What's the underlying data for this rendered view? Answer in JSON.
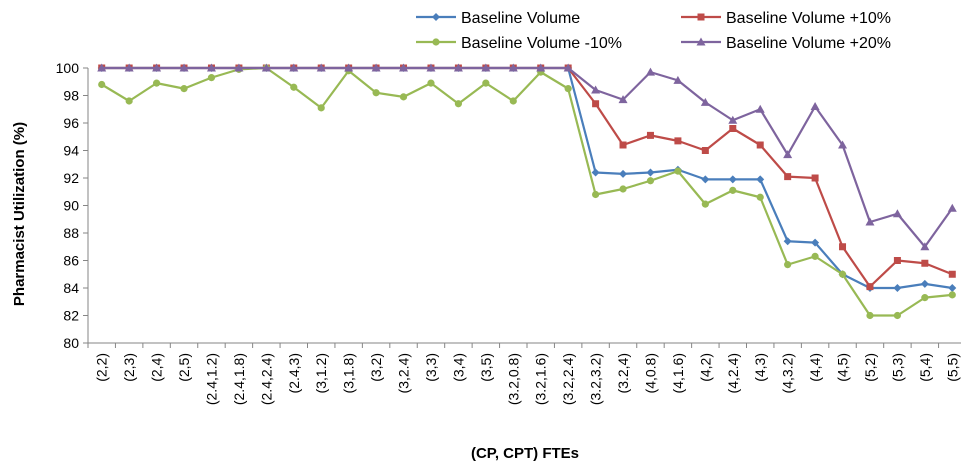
{
  "chart_data": {
    "type": "line",
    "xlabel": "(CP, CPT) FTEs",
    "ylabel": "Pharmacist Utilization (%)",
    "ylim": [
      80,
      100
    ],
    "yticks": [
      80,
      82,
      84,
      86,
      88,
      90,
      92,
      94,
      96,
      98,
      100
    ],
    "grid": false,
    "legend_position": "top-right",
    "categories": [
      "(2,2)",
      "(2,3)",
      "(2,4)",
      "(2,5)",
      "(2.4,1.2)",
      "(2.4,1.8)",
      "(2.4,2.4)",
      "(2.4,3)",
      "(3,1.2)",
      "(3,1.8)",
      "(3,2)",
      "(3,2.4)",
      "(3,3)",
      "(3,4)",
      "(3,5)",
      "(3.2,0.8)",
      "(3.2,1.6)",
      "(3.2,2.4)",
      "(3.2,3.2)",
      "(3.2,4)",
      "(4,0.8)",
      "(4,1.6)",
      "(4,2)",
      "(4,2.4)",
      "(4,3)",
      "(4,3.2)",
      "(4,4)",
      "(4,5)",
      "(5,2)",
      "(5,3)",
      "(5,4)",
      "(5,5)"
    ],
    "series": [
      {
        "name": "Baseline Volume",
        "color": "#4A7EBB",
        "marker": "diamond",
        "values": [
          100,
          100,
          100,
          100,
          100,
          100,
          100,
          100,
          100,
          100,
          100,
          100,
          100,
          100,
          100,
          100,
          100,
          100,
          92.4,
          92.3,
          92.4,
          92.6,
          91.9,
          91.9,
          91.9,
          87.4,
          87.3,
          85.0,
          84.0,
          84.0,
          84.3,
          84.0
        ]
      },
      {
        "name": "Baseline Volume +10%",
        "color": "#BE4B48",
        "marker": "square",
        "values": [
          100,
          100,
          100,
          100,
          100,
          100,
          100,
          100,
          100,
          100,
          100,
          100,
          100,
          100,
          100,
          100,
          100,
          100,
          97.4,
          94.4,
          95.1,
          94.7,
          94.0,
          95.6,
          94.4,
          92.1,
          92.0,
          87.0,
          84.1,
          86.0,
          85.8,
          85.0
        ]
      },
      {
        "name": "Baseline Volume -10%",
        "color": "#98B954",
        "marker": "circle",
        "values": [
          98.8,
          97.6,
          98.9,
          98.5,
          99.3,
          99.9,
          100,
          98.6,
          97.1,
          99.8,
          98.2,
          97.9,
          98.9,
          97.4,
          98.9,
          97.6,
          99.7,
          98.5,
          90.8,
          91.2,
          91.8,
          92.5,
          90.1,
          91.1,
          90.6,
          85.7,
          86.3,
          85.0,
          82.0,
          82.0,
          83.3,
          83.5
        ]
      },
      {
        "name": "Baseline Volume +20%",
        "color": "#7E649E",
        "marker": "triangle",
        "values": [
          100,
          100,
          100,
          100,
          100,
          100,
          100,
          100,
          100,
          100,
          100,
          100,
          100,
          100,
          100,
          100,
          100,
          100,
          98.4,
          97.7,
          99.7,
          99.1,
          97.5,
          96.2,
          97.0,
          93.7,
          97.2,
          94.4,
          88.8,
          89.4,
          87.0,
          89.8
        ]
      }
    ]
  }
}
